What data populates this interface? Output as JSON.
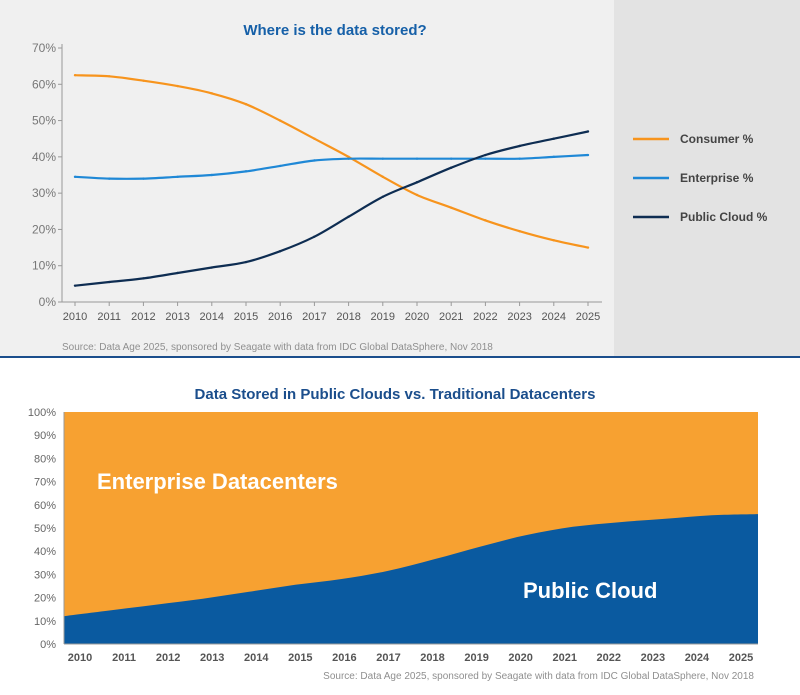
{
  "chart_data": [
    {
      "type": "line",
      "title": "Where is the data stored?",
      "x": [
        2010,
        2011,
        2012,
        2013,
        2014,
        2015,
        2016,
        2017,
        2018,
        2019,
        2020,
        2021,
        2022,
        2023,
        2024,
        2025
      ],
      "series": [
        {
          "name": "Consumer %",
          "color": "#f7941d",
          "values": [
            62.5,
            62.2,
            61,
            59.5,
            57.5,
            54.5,
            50,
            45,
            40,
            34.5,
            29.5,
            26,
            22.5,
            19.5,
            17,
            15
          ]
        },
        {
          "name": "Enterprise %",
          "color": "#1f88d6",
          "values": [
            34.5,
            34,
            34,
            34.5,
            35,
            36,
            37.5,
            39,
            39.5,
            39.5,
            39.5,
            39.5,
            39.5,
            39.5,
            40,
            40.5
          ]
        },
        {
          "name": "Public Cloud %",
          "color": "#0e2d52",
          "values": [
            4.5,
            5.5,
            6.5,
            8,
            9.5,
            11,
            14,
            18,
            23.5,
            29,
            33,
            37,
            40.5,
            43,
            45,
            47
          ]
        }
      ],
      "yticks": [
        "0%",
        "10%",
        "20%",
        "30%",
        "40%",
        "50%",
        "60%",
        "70%"
      ],
      "ylim": [
        0,
        70
      ],
      "legend_position": "right",
      "grid": false,
      "source": "Source: Data Age 2025, sponsored by Seagate with data from IDC Global DataSphere, Nov 2018"
    },
    {
      "type": "area",
      "title": "Data Stored in Public Clouds vs. Traditional Datacenters",
      "x": [
        2010,
        2011,
        2012,
        2013,
        2014,
        2015,
        2016,
        2017,
        2018,
        2019,
        2020,
        2021,
        2022,
        2023,
        2024,
        2025
      ],
      "series": [
        {
          "name": "Public Cloud",
          "color": "#0a5aa0",
          "values": [
            12,
            14.5,
            17,
            19.5,
            22.5,
            25.5,
            28,
            31.5,
            36.5,
            42,
            47,
            50.5,
            52.5,
            54,
            55.5,
            56
          ]
        },
        {
          "name": "Enterprise Datacenters",
          "color": "#f7a131",
          "values": [
            88,
            85.5,
            83,
            80.5,
            77.5,
            74.5,
            72,
            68.5,
            63.5,
            58,
            53,
            49.5,
            47.5,
            46,
            44.5,
            44
          ]
        }
      ],
      "yticks": [
        "0%",
        "10%",
        "20%",
        "30%",
        "40%",
        "50%",
        "60%",
        "70%",
        "80%",
        "90%",
        "100%"
      ],
      "ylim": [
        0,
        100
      ],
      "stacked": true,
      "legend_position": "in-chart labels",
      "source": "Source: Data Age 2025, sponsored by Seagate with data from IDC Global DataSphere, Nov 2018"
    }
  ]
}
